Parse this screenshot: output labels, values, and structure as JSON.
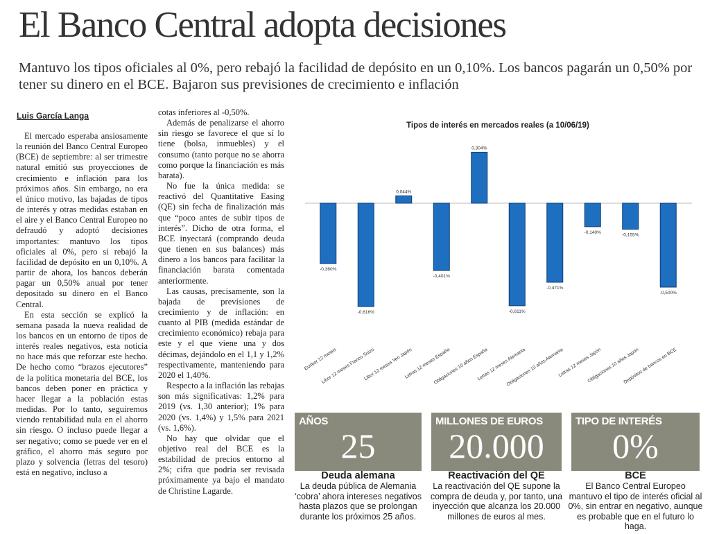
{
  "headline": "El Banco Central adopta decisiones",
  "subhead": "Mantuvo los tipos oficiales al 0%, pero rebajó la facilidad de depósito en un 0,10%. Los bancos pagarán un 0,50% por tener su dinero en el BCE. Bajaron sus previsiones de crecimiento e inflación",
  "byline": "Luis García Langa",
  "column1": [
    "El mercado esperaba ansiosamente la reunión del Banco Central Europeo (BCE) de septiembre: al ser trimestre natural emitió sus proyecciones de crecimiento e inflación para los próximos años. Sin embargo, no era el único motivo, las bajadas de tipos de interés y otras medidas estaban en el aire y el Banco Central Europeo no defraudó y adoptó decisiones importantes: mantuvo los tipos oficiales al 0%, pero si rebajó la facilidad de depósito en un 0,10%. A partir de ahora, los bancos deberán pagar un 0,50% anual por tener depositado su dinero en el Banco Central.",
    "En esta sección se explicó la semana pasada la nueva realidad de los bancos en un entorno de tipos de interés reales negativos, esta noticia no hace más que reforzar este hecho. De hecho como “brazos ejecutores” de la política monetaria del BCE, los bancos deben poner en práctica y hacer llegar a la población estas medidas. Por lo tanto, seguiremos viendo rentabilidad nula en el ahorro sin riesgo. O incluso puede llegar a ser negativo; como se puede ver en el gráfico, el ahorro más seguro por plazo y solvencia (letras del tesoro) está en negativo, incluso a"
  ],
  "column2": [
    "cotas inferiores al -0,50%.",
    "Además de penalizarse el ahorro sin riesgo se favorece el que sí lo tiene (bolsa, inmuebles) y el consumo (tanto porque no se ahorra como porque la financiación es más barata).",
    "No fue la única medida: se reactivó del Quantitative Easing (QE) sin fecha de finalización más que “poco antes de subir tipos de interés”. Dicho de otra forma, el BCE inyectará (comprando deuda que tienen en sus balances) más dinero a los bancos para facilitar la financiación barata comentada anteriormente.",
    "Las causas, precisamente, son la bajada de previsiones de crecimiento y de inflación: en cuanto al PIB (medida estándar de crecimiento económico) rebaja para este y el que viene una y dos décimas, dejándolo en el 1,1 y 1,2% respectivamente, manteniendo para 2020 el 1,40%.",
    "Respecto a la inflación las rebajas son más significativas: 1,2% para 2019 (vs. 1,30 anterior); 1% para 2020 (vs. 1,4%) y 1,5% para 2021 (vs. 1,6%).",
    "No hay que olvidar que el objetivo real del BCE es la estabilidad de precios entorno al 2%; cifra que podría ser revisada próximamente ya bajo el mandato de Christine Lagarde."
  ],
  "boxes": [
    {
      "label": "AÑOS",
      "number": "25",
      "title": "Deuda alemana",
      "text": "La deuda pública de Alemania ‘cobra’ ahora intereses negativos hasta plazos que se prolongan durante los próximos 25 años."
    },
    {
      "label": "MILLONES DE EUROS",
      "number": "20.000",
      "title": "Reactivación del QE",
      "text": "La reactivación del QE supone la compra de deuda y, por tanto, una inyección que alcanza los 20.000 millones de euros al mes."
    },
    {
      "label": "TIPO DE INTERÉS",
      "number": "0%",
      "title": "BCE",
      "text": "El Banco Central Europeo mantuvo el tipo de interés oficial al 0%, sin entrar en negativo, aunque es probable que en el futuro lo haga."
    }
  ],
  "colors": {
    "bar": "#1f6fc0",
    "box": "#8a8a7c"
  },
  "chart_data": {
    "type": "bar",
    "title": "Tipos de interés en mercados reales (a 10/06/19)",
    "categories": [
      "Euribor 12 meses",
      "Libor 12 meses Franco Suizo",
      "Libor 12 meses Yen Japón",
      "Letras 12 meses España",
      "Obligaciones 10 años España",
      "Letras 12 meses Alemania",
      "Obligaciones 10 años Alemania",
      "Letras 12 meses Japón",
      "Obligaciones 10 años Japón",
      "Depósitos de bancos en BCE"
    ],
    "values": [
      -0.36,
      -0.616,
      0.044,
      -0.401,
      0.304,
      -0.611,
      -0.471,
      -0.14,
      -0.155,
      -0.5
    ],
    "labels": [
      "-0,360%",
      "-0,616%",
      "0,044%",
      "-0,401%",
      "0,304%",
      "-0,611%",
      "-0,471%",
      "-0,140%",
      "-0,155%",
      "-0,500%"
    ],
    "xlabel": "",
    "ylabel": "",
    "grid": false,
    "legend": "none"
  }
}
